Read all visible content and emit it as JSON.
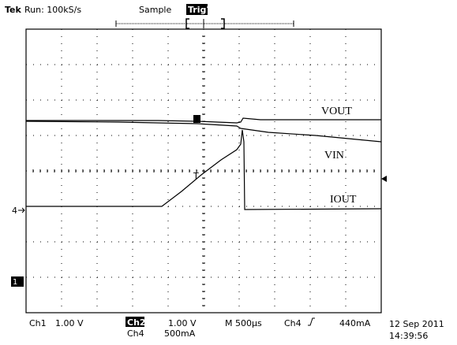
{
  "header": {
    "brand": "Tek",
    "status": "Run: 100kS/s",
    "mode": "Sample",
    "trigger": "Trig?"
  },
  "traces": {
    "vout": "VOUT",
    "vin": "VIN",
    "iout": "IOUT"
  },
  "markers": {
    "trigger_level": "T",
    "ch4": "4",
    "ch1": "1"
  },
  "footer": {
    "ch1": "Ch1",
    "ch1_scale": "1.00 V",
    "ch2": "Ch2",
    "ch2_scale": "1.00 V",
    "ch4": "Ch4",
    "ch4_scale": "500mA",
    "timebase": "M 500µs",
    "trigger_source": "Ch4",
    "trigger_level": "440mA",
    "date": "12 Sep 2011",
    "time": "14:39:56"
  }
}
